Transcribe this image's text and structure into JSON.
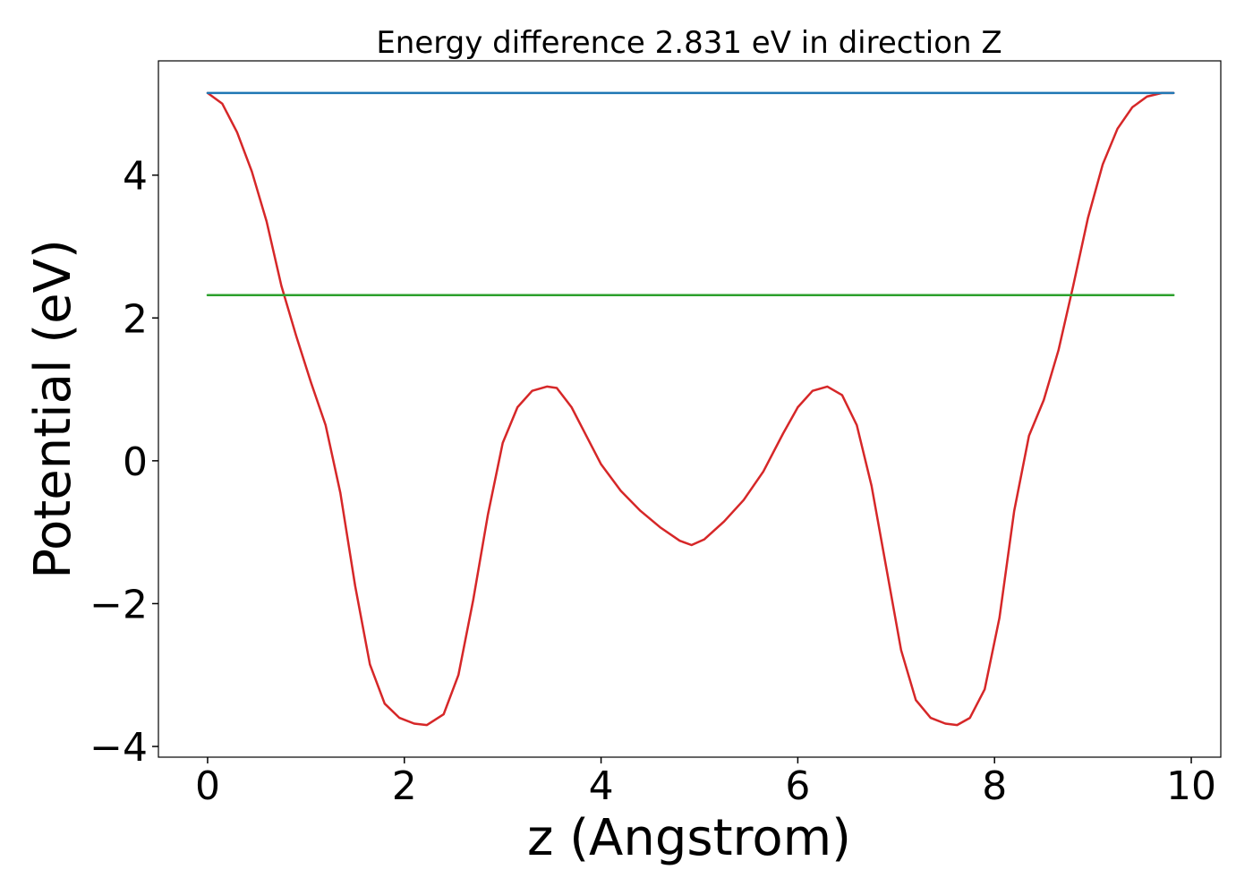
{
  "chart_data": {
    "type": "line",
    "title": "Energy difference 2.831 eV in direction Z",
    "xlabel": "z (Angstrom)",
    "ylabel": "Potential (eV)",
    "xlim": [
      -0.5,
      10.3
    ],
    "ylim": [
      -4.15,
      5.6
    ],
    "xticks": [
      0,
      2,
      4,
      6,
      8,
      10
    ],
    "yticks": [
      -4,
      -2,
      0,
      2,
      4
    ],
    "xtick_labels": [
      "0",
      "2",
      "4",
      "6",
      "8",
      "10"
    ],
    "ytick_labels": [
      "−4",
      "−2",
      "0",
      "2",
      "4"
    ],
    "grid": false,
    "series": [
      {
        "color": "#d62728",
        "x": [
          0.0,
          0.15,
          0.3,
          0.45,
          0.6,
          0.75,
          0.9,
          1.05,
          1.2,
          1.35,
          1.5,
          1.65,
          1.8,
          1.95,
          2.1,
          2.23,
          2.4,
          2.55,
          2.7,
          2.85,
          3.0,
          3.15,
          3.3,
          3.45,
          3.55,
          3.7,
          3.85,
          4.0,
          4.2,
          4.4,
          4.6,
          4.8,
          4.92,
          5.05,
          5.25,
          5.45,
          5.65,
          5.85,
          6.0,
          6.15,
          6.3,
          6.45,
          6.6,
          6.75,
          6.9,
          7.05,
          7.2,
          7.35,
          7.5,
          7.62,
          7.75,
          7.9,
          8.05,
          8.2,
          8.35,
          8.5,
          8.65,
          8.8,
          8.95,
          9.1,
          9.25,
          9.4,
          9.55,
          9.7,
          9.82
        ],
        "y": [
          5.15,
          5.0,
          4.6,
          4.05,
          3.35,
          2.45,
          1.75,
          1.1,
          0.5,
          -0.45,
          -1.75,
          -2.85,
          -3.4,
          -3.6,
          -3.68,
          -3.7,
          -3.55,
          -3.0,
          -1.95,
          -0.75,
          0.25,
          0.75,
          0.98,
          1.04,
          1.02,
          0.75,
          0.35,
          -0.05,
          -0.42,
          -0.7,
          -0.93,
          -1.12,
          -1.18,
          -1.1,
          -0.85,
          -0.55,
          -0.15,
          0.38,
          0.75,
          0.98,
          1.04,
          0.92,
          0.5,
          -0.35,
          -1.5,
          -2.65,
          -3.35,
          -3.6,
          -3.68,
          -3.7,
          -3.6,
          -3.2,
          -2.2,
          -0.7,
          0.35,
          0.85,
          1.55,
          2.45,
          3.4,
          4.15,
          4.65,
          4.95,
          5.1,
          5.15,
          5.15
        ]
      },
      {
        "color": "#1f77b4",
        "x": [
          0.0,
          9.82
        ],
        "y": [
          5.15,
          5.15
        ]
      },
      {
        "color": "#2ca02c",
        "x": [
          0.0,
          9.82
        ],
        "y": [
          2.32,
          2.32
        ]
      }
    ]
  }
}
